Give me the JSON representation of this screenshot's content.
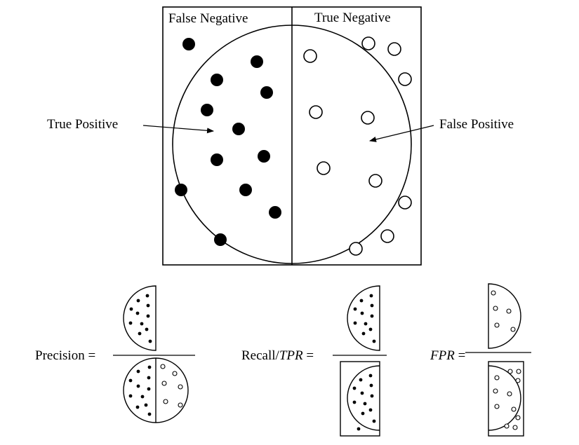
{
  "labels": {
    "false_negative": "False Negative",
    "true_negative": "True Negative",
    "true_positive": "True Positive",
    "false_positive": "False Positive"
  },
  "formulas": {
    "precision": "Precision =",
    "recall_prefix": "Recall/",
    "recall_tpr": "TPR",
    "recall_eq": " =",
    "fpr": "FPR",
    "fpr_eq": " ="
  }
}
